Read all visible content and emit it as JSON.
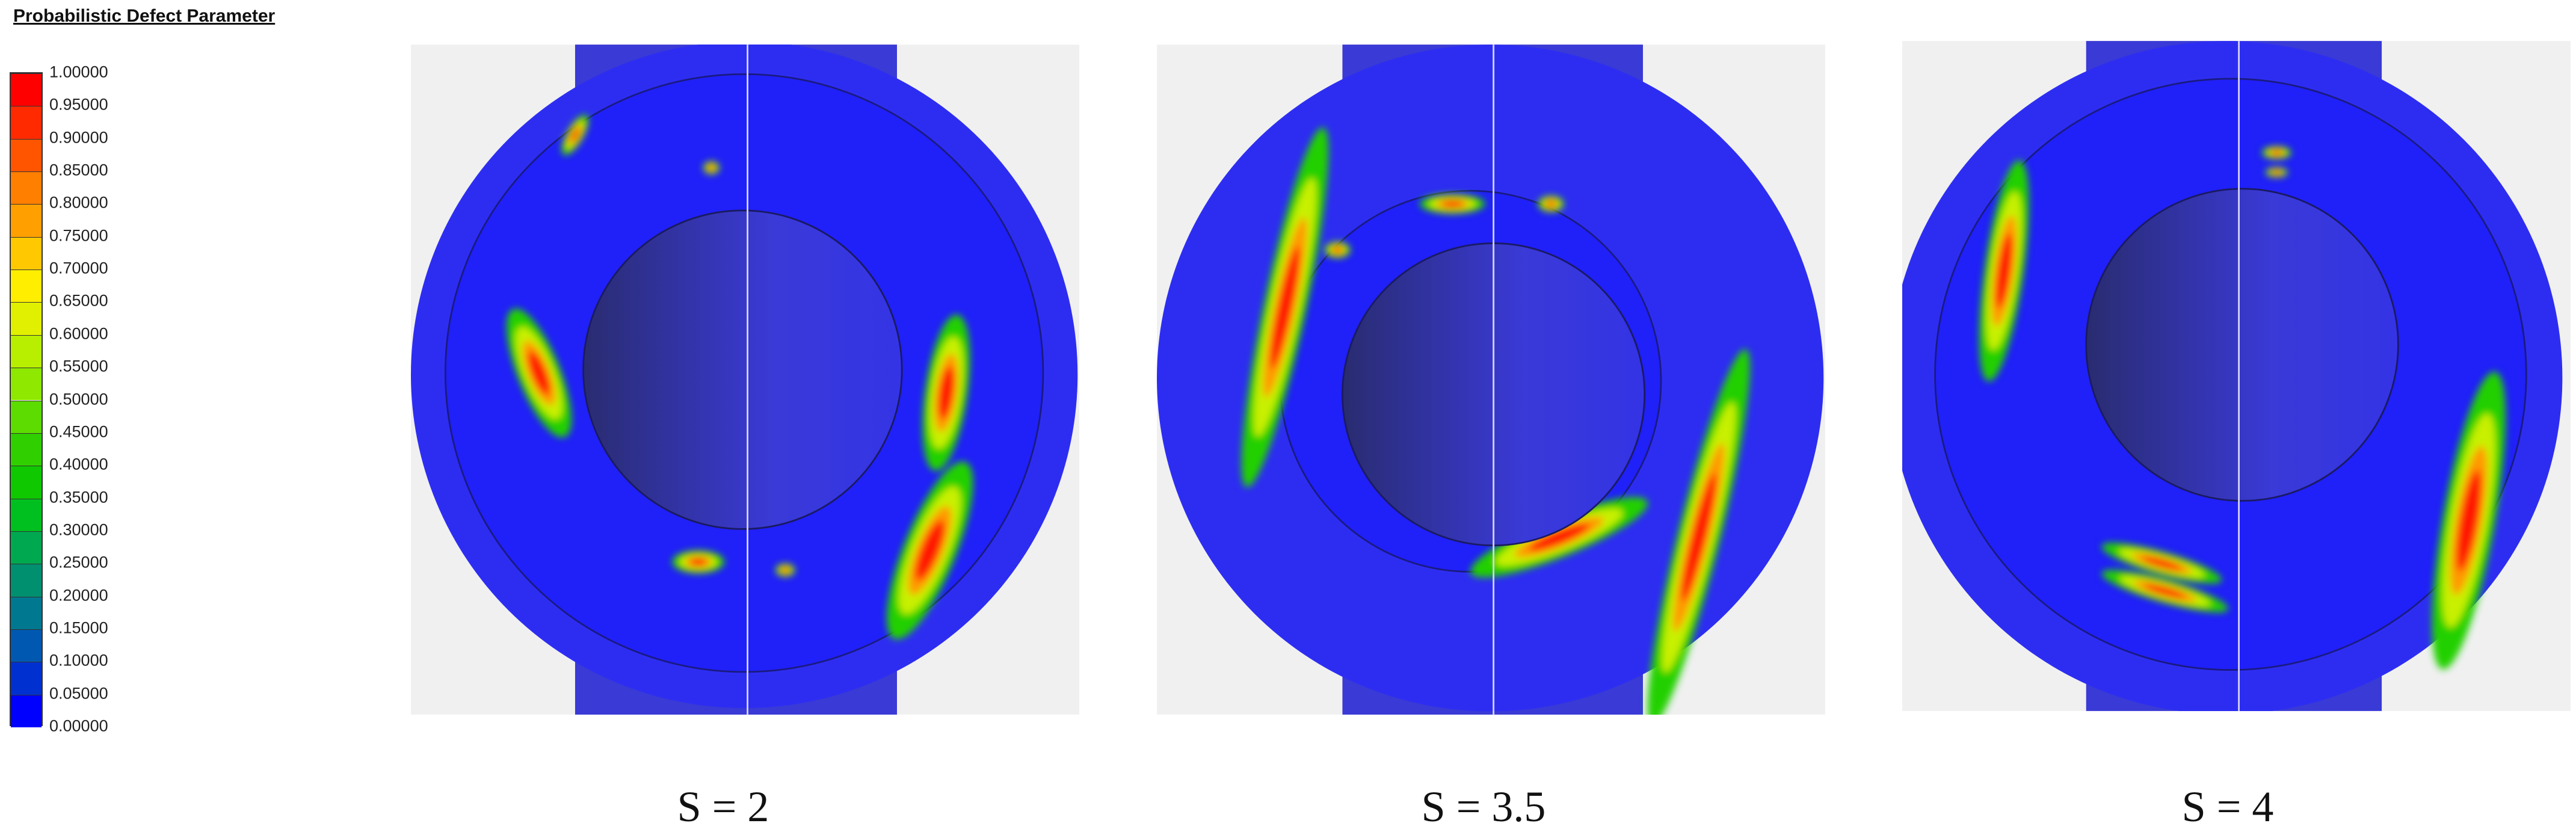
{
  "legend": {
    "title": "Probabilistic Defect Parameter",
    "labels": [
      "1.00000",
      "0.95000",
      "0.90000",
      "0.85000",
      "0.80000",
      "0.75000",
      "0.70000",
      "0.65000",
      "0.60000",
      "0.55000",
      "0.50000",
      "0.45000",
      "0.40000",
      "0.35000",
      "0.30000",
      "0.25000",
      "0.20000",
      "0.15000",
      "0.10000",
      "0.05000",
      "0.00000"
    ]
  },
  "panels": [
    {
      "caption": "S = 2"
    },
    {
      "caption": "S = 3.5"
    },
    {
      "caption": "S = 4"
    }
  ]
}
